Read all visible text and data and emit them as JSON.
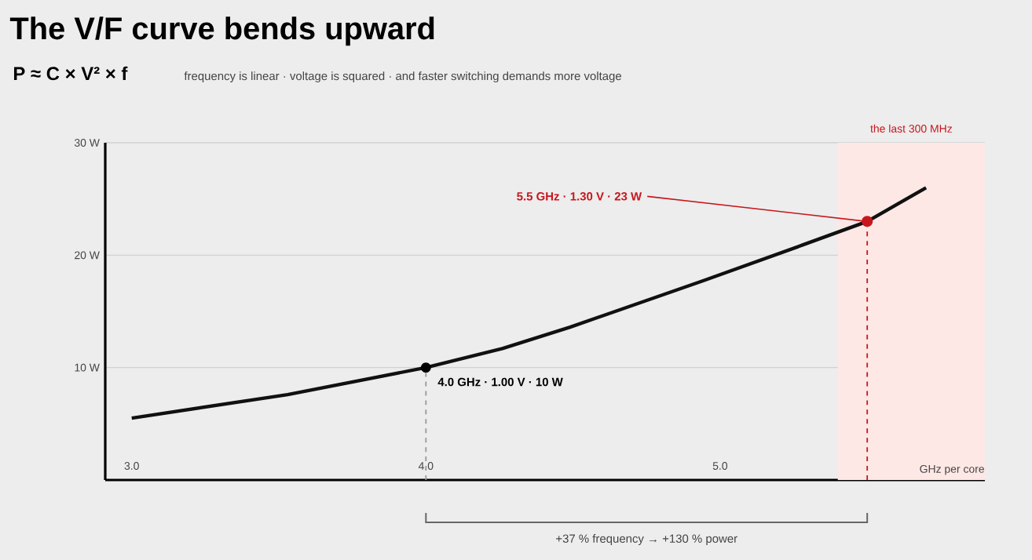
{
  "chart_data": {
    "type": "line",
    "title": "The V/F curve bends upward",
    "subtitle": "frequency is linear · voltage is squared · and faster switching demands more voltage",
    "xlabel": "GHz per core",
    "x": [
      3.0,
      3.53,
      4.0,
      4.26,
      4.49,
      4.94,
      5.28,
      5.5,
      5.7
    ],
    "series": [
      {
        "color": "#111111",
        "values": [
          5.5,
          7.6,
          10,
          11.7,
          13.6,
          17.7,
          20.9,
          23,
          26.0
        ]
      }
    ],
    "xlim": [
      2.91,
      5.9
    ],
    "ylim": [
      0,
      30
    ],
    "xticks": [
      {
        "value": 3,
        "label": "3.0"
      },
      {
        "value": 4,
        "label": "4.0"
      },
      {
        "value": 5,
        "label": "5.0"
      }
    ],
    "yticks": [
      {
        "value": 10,
        "label": "10 W"
      },
      {
        "value": 20,
        "label": "20 W"
      },
      {
        "value": 30,
        "label": "30 W"
      }
    ],
    "grid": "y",
    "marker": "none",
    "line_style": "solid",
    "ref_lines": [
      {
        "axis": "x",
        "value": 4.0,
        "color": "#999999",
        "line_style": "dashed"
      },
      {
        "axis": "x",
        "value": 5.5,
        "color": "#c8161d",
        "line_style": "dashed"
      }
    ],
    "bands": [
      {
        "axis": "x",
        "from": 5.4,
        "to": 5.9,
        "label": "the last 300 MHz",
        "color": "#fde8e6"
      }
    ],
    "annotations": [
      "P ≈ C × V² × f",
      {
        "text": "4.0 GHz · 1.00 V · 10 W",
        "x": 4.0,
        "y": 10
      },
      {
        "text": "5.5 GHz · 1.30 V · 23 W",
        "x": 5.5,
        "y": 23
      },
      "+37 % frequency → +130 % power"
    ]
  }
}
